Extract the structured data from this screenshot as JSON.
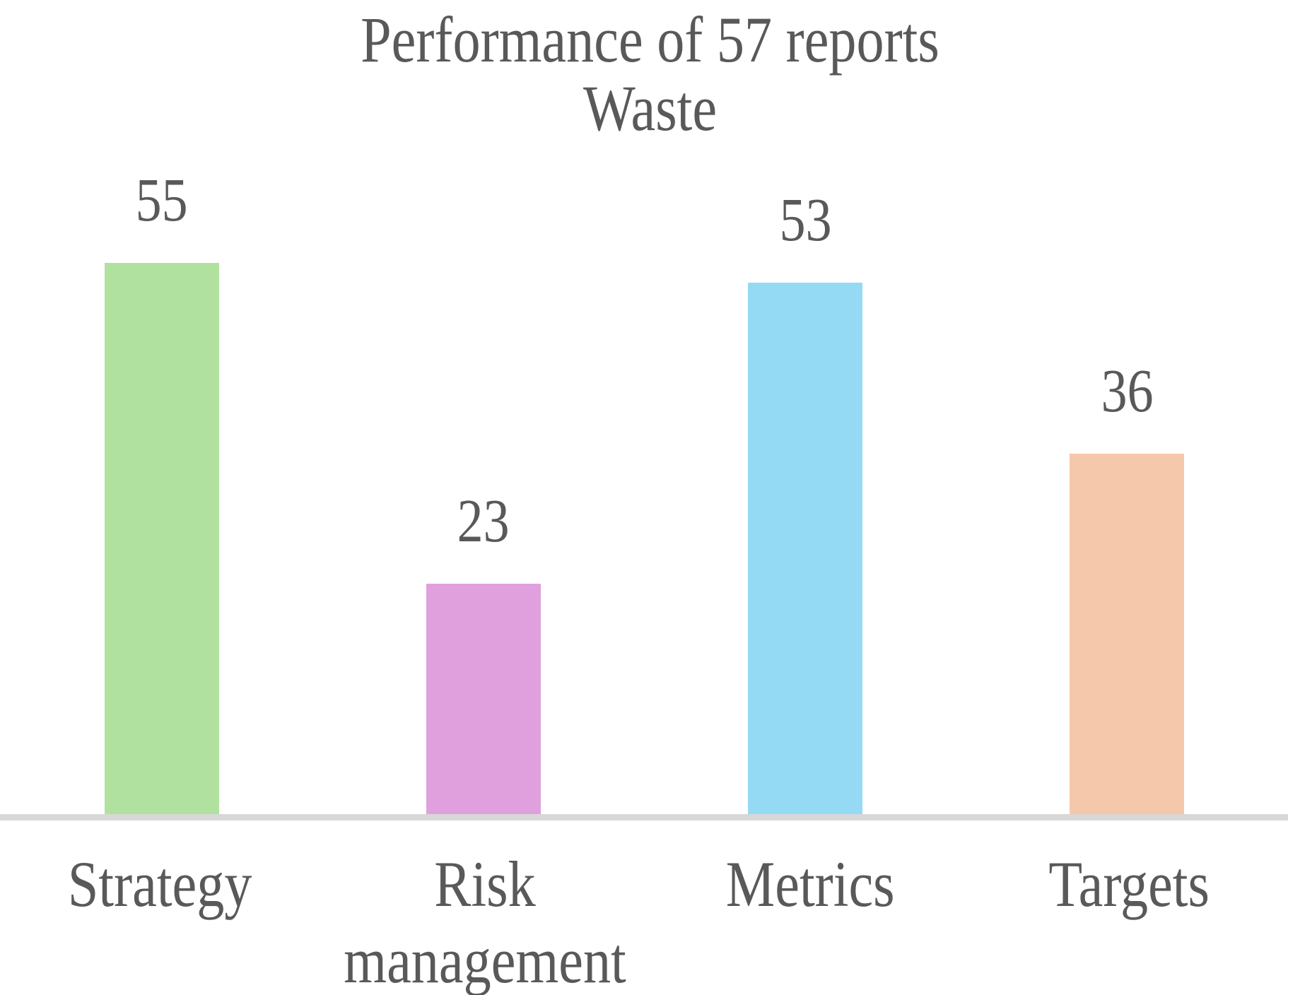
{
  "chart_data": {
    "type": "bar",
    "title": "Performance of 57 reports",
    "subtitle": "Waste",
    "categories": [
      "Strategy",
      "Risk management",
      "Metrics",
      "Targets"
    ],
    "values": [
      55,
      23,
      53,
      36
    ],
    "data_labels": [
      55,
      23,
      53,
      36
    ],
    "bar_colors": [
      "#b1e19e",
      "#e0a0dd",
      "#95daf5",
      "#f5c8ab"
    ],
    "text_color": "#595959",
    "axis_line_color": "#d8d8d8",
    "background_color": "#ffffff",
    "legend_position": "none",
    "grid": false,
    "y_axis_visible": false,
    "x_axis_visible": true
  }
}
